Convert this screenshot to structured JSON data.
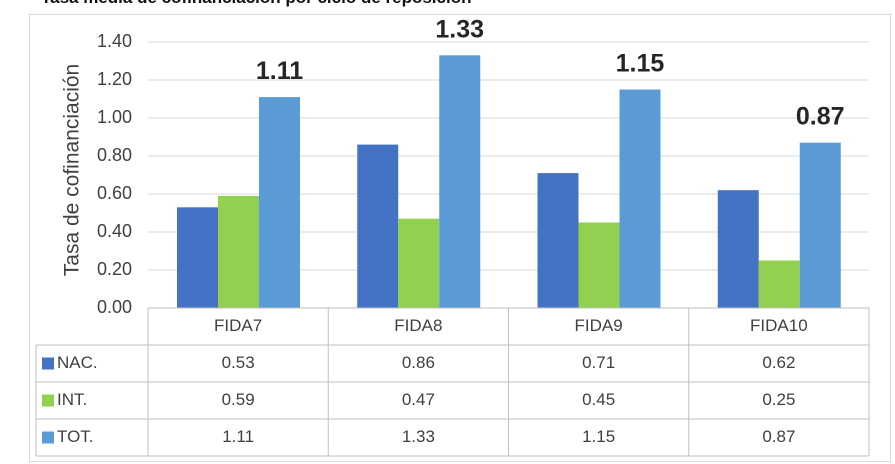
{
  "chart_data": {
    "type": "bar",
    "title": "Tasa media de cofinanciación por ciclo de reposición",
    "ylabel": "Tasa de cofinanciación",
    "categories": [
      "FIDA7",
      "FIDA8",
      "FIDA9",
      "FIDA10"
    ],
    "series": [
      {
        "name": "NAC.",
        "values": [
          0.53,
          0.86,
          0.71,
          0.62
        ],
        "color": "#4472c4",
        "value_labels": [
          "0.53",
          "0.86",
          "0.71",
          "0.62"
        ]
      },
      {
        "name": "INT.",
        "values": [
          0.59,
          0.47,
          0.45,
          0.25
        ],
        "color": "#92d050",
        "value_labels": [
          "0.59",
          "0.47",
          "0.45",
          "0.25"
        ]
      },
      {
        "name": "TOT.",
        "values": [
          1.11,
          1.33,
          1.15,
          0.87
        ],
        "color": "#5b9bd5",
        "value_labels": [
          "1.11",
          "1.33",
          "1.15",
          "0.87"
        ]
      }
    ],
    "bar_labels": [
      "1.11",
      "1.33",
      "1.15",
      "0.87"
    ],
    "ylim": [
      0,
      1.4
    ],
    "yticks": [
      "0.00",
      "0.20",
      "0.40",
      "0.60",
      "0.80",
      "1.00",
      "1.20",
      "1.40"
    ],
    "grid": true,
    "legend": "data-table"
  }
}
